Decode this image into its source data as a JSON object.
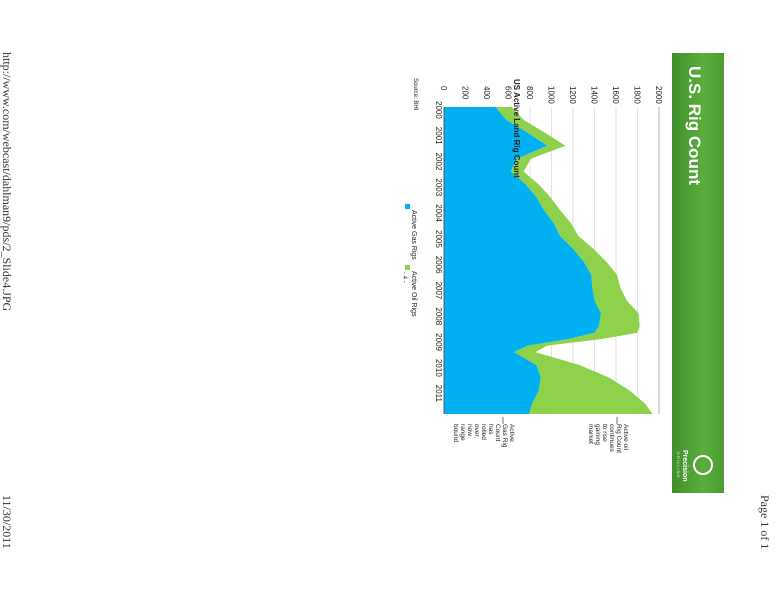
{
  "page": {
    "url": "http://www.com/webcast/dahlman9/pds/2_Slide4.JPG",
    "page_label": "Page 1 of 1",
    "date": "11/30/2011"
  },
  "slide": {
    "title": "U.S. Rig Count",
    "logo_name": "Precision",
    "logo_sub": "DRILLING",
    "annotation_oil": [
      "Active oil",
      "Rig Count",
      "continues",
      "to rise",
      "gaining",
      "market"
    ],
    "annotation_gas": [
      "Active",
      "Gas Rig",
      "Count",
      "has",
      "rolled",
      "over,",
      "now",
      "range",
      "bound"
    ],
    "source": "Source: BHI",
    "page_number": "- 4 -"
  },
  "colors": {
    "gas": "#00b0f0",
    "oil": "#8ed14b",
    "banner": "#4fa335"
  },
  "chart_data": {
    "type": "area",
    "stacked": true,
    "title": "US Active Land Rig Count",
    "xlabel": "",
    "ylabel": "",
    "xlim": [
      2000,
      2011.9
    ],
    "ylim": [
      0,
      2000
    ],
    "y_ticks": [
      0,
      200,
      400,
      600,
      800,
      1000,
      1200,
      1400,
      1600,
      1800,
      2000
    ],
    "x_ticks": [
      "2000",
      "2001",
      "2002",
      "2003",
      "2004",
      "2005",
      "2006",
      "2007",
      "2008",
      "2009",
      "2010",
      "2011"
    ],
    "legend": "bottom",
    "grid": true,
    "x": [
      2000.0,
      2000.5,
      2001.0,
      2001.5,
      2002.0,
      2002.5,
      2003.0,
      2003.5,
      2004.0,
      2004.5,
      2005.0,
      2005.5,
      2006.0,
      2006.5,
      2007.0,
      2007.5,
      2008.0,
      2008.5,
      2008.75,
      2009.0,
      2009.25,
      2009.5,
      2010.0,
      2010.5,
      2011.0,
      2011.5,
      2011.9
    ],
    "series": [
      {
        "name": "Active Gas Rigs",
        "values": [
          480,
          580,
          780,
          960,
          680,
          620,
          760,
          860,
          930,
          1020,
          1080,
          1200,
          1300,
          1370,
          1380,
          1400,
          1460,
          1440,
          1400,
          1150,
          780,
          650,
          860,
          900,
          880,
          820,
          790
        ]
      },
      {
        "name": "Active Oil Rigs",
        "values": [
          150,
          160,
          160,
          170,
          130,
          120,
          120,
          130,
          150,
          160,
          170,
          190,
          210,
          240,
          260,
          300,
          350,
          380,
          400,
          310,
          180,
          200,
          400,
          640,
          850,
          1050,
          1150
        ]
      }
    ]
  }
}
